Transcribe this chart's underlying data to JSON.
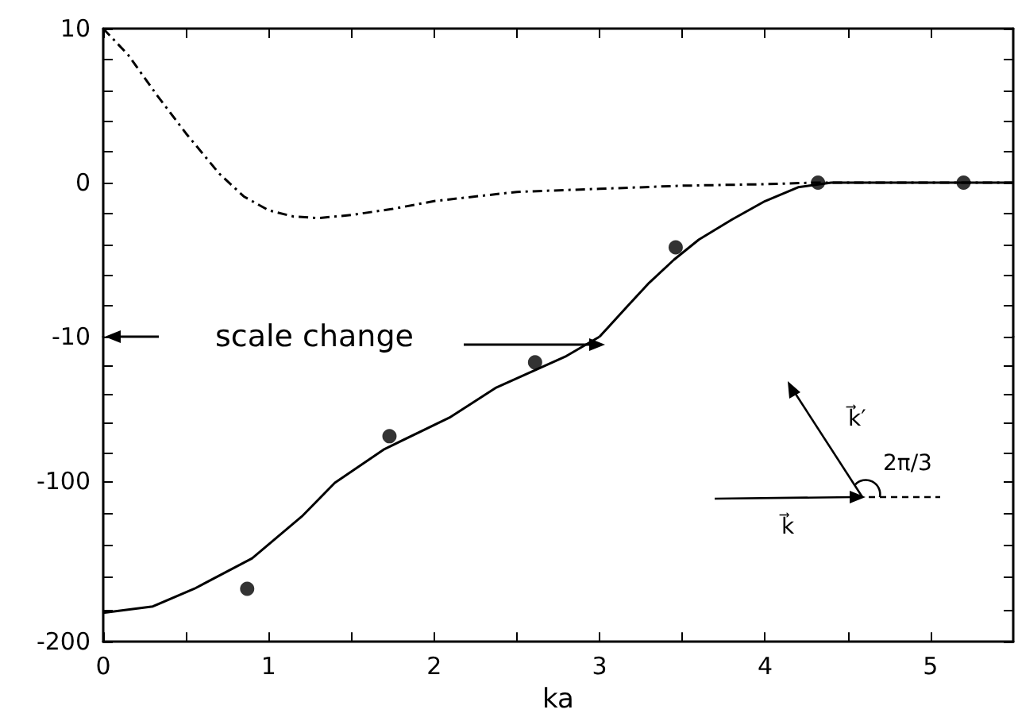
{
  "chart_data": [
    {
      "type": "line",
      "xlim": [
        0,
        5.5
      ],
      "ylim": [
        -10,
        10
      ],
      "tick_labels": "y",
      "grid": false,
      "xticks": [
        0,
        {
          "value": 0.5,
          "label": null
        },
        1,
        {
          "value": 1.5,
          "label": null
        },
        2,
        {
          "value": 2.5,
          "label": null
        },
        3,
        {
          "value": 3.5,
          "label": null
        },
        4,
        {
          "value": 4.5,
          "label": null
        },
        5
      ],
      "yticks": [
        10,
        {
          "value": 8,
          "label": null
        },
        {
          "value": 6,
          "label": null
        },
        {
          "value": 4,
          "label": null
        },
        {
          "value": 2,
          "label": null
        },
        0,
        {
          "value": -2,
          "label": null
        },
        {
          "value": -4,
          "label": null
        },
        {
          "value": -6,
          "label": null
        },
        {
          "value": -8,
          "label": null
        },
        {
          "value": -10,
          "label": null
        }
      ],
      "series": [
        {
          "color": "#000000",
          "line_style": "dashed",
          "marker": "none",
          "x": [
            0,
            0.15,
            0.33,
            0.5,
            0.7,
            0.85,
            1.0,
            1.15,
            1.3,
            1.5,
            1.75,
            2.0,
            2.5,
            3.0,
            3.5,
            4.0,
            4.3,
            5.0,
            5.5
          ],
          "values": [
            10,
            8.3,
            5.6,
            3.2,
            0.6,
            -0.9,
            -1.8,
            -2.2,
            -2.3,
            -2.1,
            -1.7,
            -1.2,
            -0.6,
            -0.4,
            -0.2,
            -0.1,
            0,
            0,
            0
          ]
        },
        {
          "color": "#000000",
          "line_style": "solid",
          "marker": "none",
          "x": [
            3.0,
            3.17,
            3.3,
            3.45,
            3.6,
            3.8,
            4.0,
            4.2,
            4.4,
            5.0,
            5.5
          ],
          "values": [
            -10,
            -8,
            -6.5,
            -5,
            -3.7,
            -2.4,
            -1.2,
            -0.3,
            0,
            0,
            0
          ]
        },
        {
          "type": "scatter",
          "color": "#000000",
          "marker": "circle",
          "x": [
            3.46,
            4.32,
            5.2
          ],
          "values": [
            -4.2,
            0,
            0
          ]
        }
      ]
    },
    {
      "type": "line",
      "xlim": [
        0,
        5.5
      ],
      "ylim": [
        -200,
        -10
      ],
      "xlabel": "ka",
      "grid": false,
      "xticks": [
        0,
        {
          "value": 0.5,
          "label": null
        },
        1,
        {
          "value": 1.5,
          "label": null
        },
        2,
        {
          "value": 2.5,
          "label": null
        },
        3,
        {
          "value": 3.5,
          "label": null
        },
        4,
        {
          "value": 4.5,
          "label": null
        },
        5
      ],
      "yticks": [
        -10,
        {
          "value": -28,
          "label": null
        },
        {
          "value": -46,
          "label": null
        },
        {
          "value": -64,
          "label": null
        },
        {
          "value": -82,
          "label": null
        },
        -100,
        {
          "value": -120,
          "label": null
        },
        {
          "value": -140,
          "label": null
        },
        {
          "value": -160,
          "label": null
        },
        {
          "value": -180,
          "label": null
        },
        -200
      ],
      "annotations": [
        "scale change",
        "k⃗",
        "k⃗′",
        "2π/3"
      ],
      "series": [
        {
          "color": "#000000",
          "line_style": "solid",
          "marker": "none",
          "x": [
            0,
            0.3,
            0.55,
            0.9,
            1.2,
            1.4,
            1.7,
            2.1,
            2.37,
            2.8,
            3.0
          ],
          "values": [
            -182,
            -178,
            -167,
            -148,
            -122,
            -101,
            -80,
            -60,
            -42,
            -22,
            -10
          ]
        },
        {
          "type": "scatter",
          "color": "#000000",
          "marker": "circle",
          "x": [
            0.87,
            1.73,
            2.61
          ],
          "values": [
            -167,
            -72,
            -26
          ]
        }
      ]
    }
  ]
}
